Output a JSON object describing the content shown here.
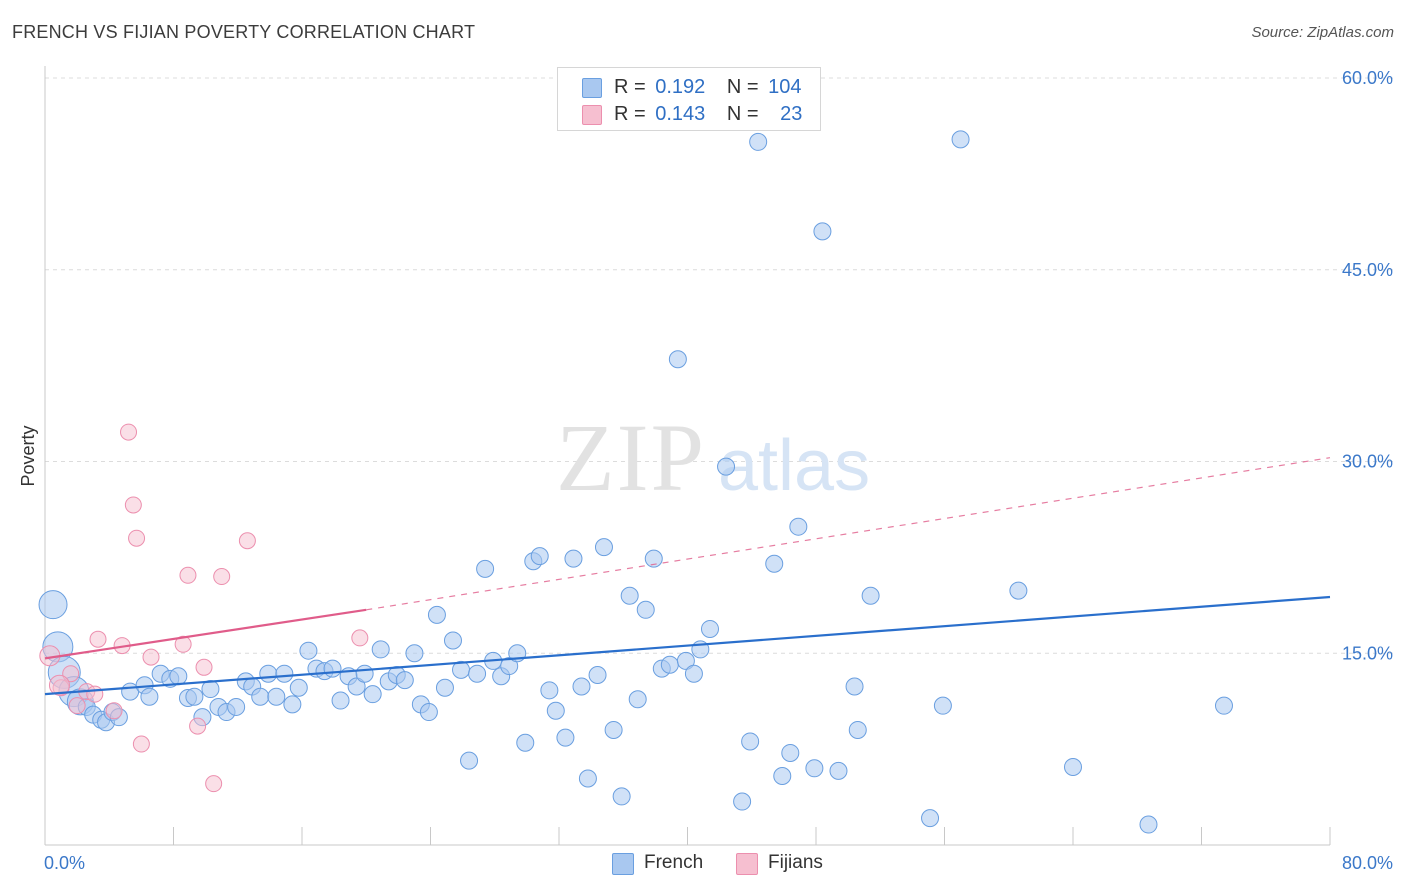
{
  "title": "FRENCH VS FIJIAN POVERTY CORRELATION CHART",
  "source": "Source: ZipAtlas.com",
  "watermark": {
    "zip": "ZIP",
    "atlas": "atlas"
  },
  "legend": {
    "rows": [
      {
        "r_label": "R =",
        "r_value": "0.192",
        "n_label": "N =",
        "n_value": "104"
      },
      {
        "r_label": "R =",
        "r_value": "0.143",
        "n_label": "N =",
        "n_value": "23"
      }
    ]
  },
  "bottom_legend": {
    "french": "French",
    "fijians": "Fijians"
  },
  "colors": {
    "french_fill": "#a9c8f0",
    "french_stroke": "#6a9fe0",
    "french_line": "#2a6fcc",
    "fijian_fill": "#f6bfd0",
    "fijian_stroke": "#ec8fae",
    "fijian_line": "#e05c8a",
    "tick_text": "#3b78c9",
    "grid": "#dcdcdc"
  },
  "chart_data": {
    "type": "scatter",
    "title": "FRENCH VS FIJIAN POVERTY CORRELATION CHART",
    "xlabel": "",
    "ylabel": "Poverty",
    "xlim": [
      0,
      80
    ],
    "ylim": [
      0,
      60
    ],
    "x_tick_labels": [
      "0.0%",
      "80.0%"
    ],
    "y_tick_labels": [
      "15.0%",
      "30.0%",
      "45.0%",
      "60.0%"
    ],
    "y_ticks": [
      15,
      30,
      45,
      60
    ],
    "grid": true,
    "legend_position": "top-center",
    "series": [
      {
        "name": "French",
        "r": 0.192,
        "n": 104,
        "trend": {
          "x": [
            0,
            80
          ],
          "y": [
            11.8,
            19.4
          ],
          "style": "solid"
        },
        "points": [
          [
            0.5,
            18.8
          ],
          [
            0.8,
            15.5
          ],
          [
            1.2,
            13.5
          ],
          [
            1.8,
            12.0
          ],
          [
            2.2,
            11.2
          ],
          [
            2.6,
            10.8
          ],
          [
            3.0,
            10.2
          ],
          [
            3.5,
            9.8
          ],
          [
            3.8,
            9.6
          ],
          [
            4.2,
            10.4
          ],
          [
            4.6,
            10.0
          ],
          [
            5.3,
            12.0
          ],
          [
            6.2,
            12.5
          ],
          [
            6.5,
            11.6
          ],
          [
            7.2,
            13.4
          ],
          [
            7.8,
            13.0
          ],
          [
            8.3,
            13.2
          ],
          [
            8.9,
            11.5
          ],
          [
            9.3,
            11.6
          ],
          [
            9.8,
            10.0
          ],
          [
            10.3,
            12.2
          ],
          [
            10.8,
            10.8
          ],
          [
            11.3,
            10.4
          ],
          [
            11.9,
            10.8
          ],
          [
            12.5,
            12.8
          ],
          [
            12.9,
            12.4
          ],
          [
            13.4,
            11.6
          ],
          [
            13.9,
            13.4
          ],
          [
            14.4,
            11.6
          ],
          [
            14.9,
            13.4
          ],
          [
            15.4,
            11.0
          ],
          [
            15.8,
            12.3
          ],
          [
            16.4,
            15.2
          ],
          [
            16.9,
            13.8
          ],
          [
            17.4,
            13.6
          ],
          [
            17.9,
            13.8
          ],
          [
            18.4,
            11.3
          ],
          [
            18.9,
            13.2
          ],
          [
            19.4,
            12.4
          ],
          [
            19.9,
            13.4
          ],
          [
            20.4,
            11.8
          ],
          [
            20.9,
            15.3
          ],
          [
            21.4,
            12.8
          ],
          [
            21.9,
            13.3
          ],
          [
            22.4,
            12.9
          ],
          [
            23.0,
            15.0
          ],
          [
            23.4,
            11.0
          ],
          [
            23.9,
            10.4
          ],
          [
            24.4,
            18.0
          ],
          [
            24.9,
            12.3
          ],
          [
            25.4,
            16.0
          ],
          [
            25.9,
            13.7
          ],
          [
            26.4,
            6.6
          ],
          [
            26.9,
            13.4
          ],
          [
            27.4,
            21.6
          ],
          [
            27.9,
            14.4
          ],
          [
            28.4,
            13.2
          ],
          [
            28.9,
            14.0
          ],
          [
            29.4,
            15.0
          ],
          [
            29.9,
            8.0
          ],
          [
            30.4,
            22.2
          ],
          [
            30.8,
            22.6
          ],
          [
            31.4,
            12.1
          ],
          [
            31.8,
            10.5
          ],
          [
            32.4,
            8.4
          ],
          [
            32.9,
            22.4
          ],
          [
            33.4,
            12.4
          ],
          [
            33.8,
            5.2
          ],
          [
            34.4,
            13.3
          ],
          [
            34.8,
            23.3
          ],
          [
            35.4,
            9.0
          ],
          [
            35.9,
            3.8
          ],
          [
            36.4,
            19.5
          ],
          [
            36.9,
            11.4
          ],
          [
            37.4,
            18.4
          ],
          [
            37.9,
            22.4
          ],
          [
            38.4,
            13.8
          ],
          [
            38.9,
            14.1
          ],
          [
            39.4,
            38.0
          ],
          [
            39.9,
            14.4
          ],
          [
            40.4,
            13.4
          ],
          [
            40.8,
            15.3
          ],
          [
            41.4,
            16.9
          ],
          [
            42.4,
            29.6
          ],
          [
            43.4,
            3.4
          ],
          [
            43.9,
            8.1
          ],
          [
            44.4,
            55.0
          ],
          [
            45.4,
            22.0
          ],
          [
            45.9,
            5.4
          ],
          [
            46.4,
            7.2
          ],
          [
            46.9,
            24.9
          ],
          [
            47.9,
            6.0
          ],
          [
            48.4,
            48.0
          ],
          [
            49.4,
            5.8
          ],
          [
            50.4,
            12.4
          ],
          [
            50.6,
            9.0
          ],
          [
            51.4,
            19.5
          ],
          [
            55.1,
            2.1
          ],
          [
            55.9,
            10.9
          ],
          [
            57.0,
            55.2
          ],
          [
            60.6,
            19.9
          ],
          [
            64.0,
            6.1
          ],
          [
            68.7,
            1.6
          ],
          [
            73.4,
            10.9
          ]
        ]
      },
      {
        "name": "Fijians",
        "r": 0.143,
        "n": 23,
        "trend": {
          "x": [
            0,
            20
          ],
          "y": [
            14.6,
            18.4
          ],
          "style": "solid-then-dashed",
          "dashed_to": {
            "x": 80,
            "y": 30.3
          }
        },
        "points": [
          [
            0.3,
            14.8
          ],
          [
            1.0,
            12.3
          ],
          [
            1.6,
            13.4
          ],
          [
            2.0,
            10.9
          ],
          [
            2.6,
            12.0
          ],
          [
            3.1,
            11.8
          ],
          [
            3.3,
            16.1
          ],
          [
            4.3,
            10.5
          ],
          [
            4.8,
            15.6
          ],
          [
            5.2,
            32.3
          ],
          [
            5.5,
            26.6
          ],
          [
            5.7,
            24.0
          ],
          [
            6.0,
            7.9
          ],
          [
            6.6,
            14.7
          ],
          [
            8.6,
            15.7
          ],
          [
            8.9,
            21.1
          ],
          [
            9.5,
            9.3
          ],
          [
            9.9,
            13.9
          ],
          [
            10.5,
            4.8
          ],
          [
            11.0,
            21.0
          ],
          [
            12.6,
            23.8
          ],
          [
            19.6,
            16.2
          ],
          [
            0.9,
            12.5
          ]
        ]
      }
    ]
  }
}
